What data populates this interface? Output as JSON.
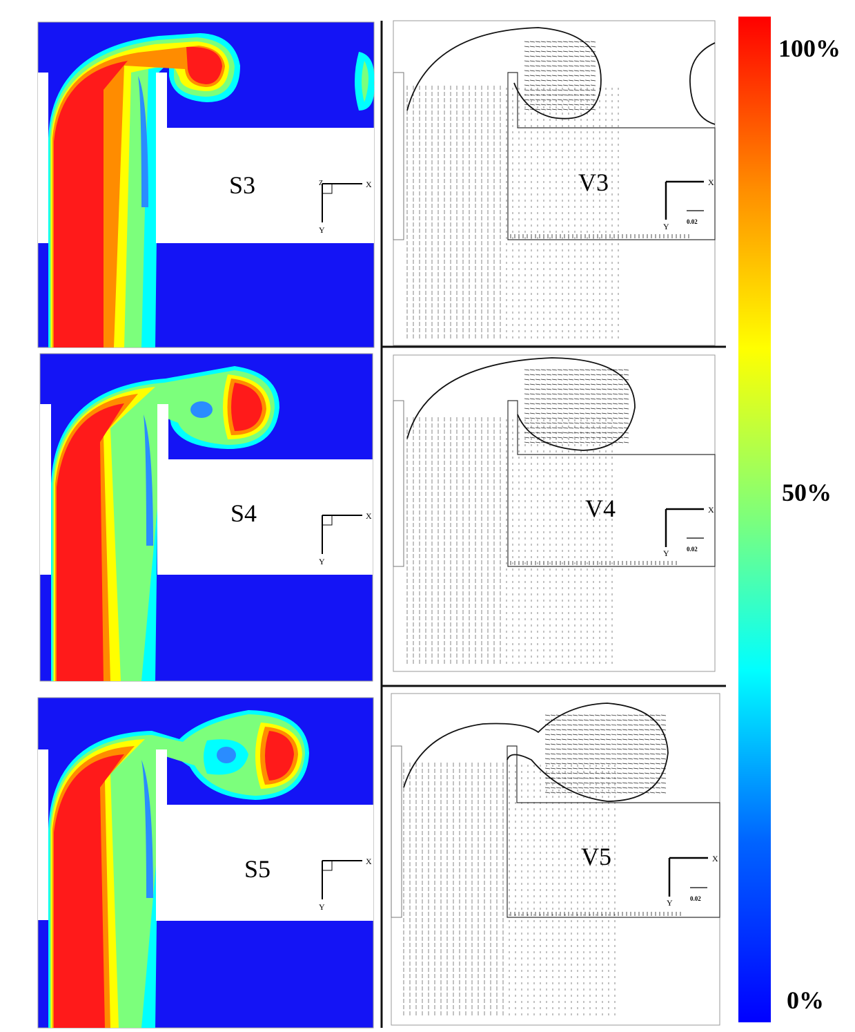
{
  "panels": [
    {
      "label": "S3",
      "type": "scalar"
    },
    {
      "label": "V3",
      "type": "vector",
      "scale": "0.02"
    },
    {
      "label": "S4",
      "type": "scalar"
    },
    {
      "label": "V4",
      "type": "vector",
      "scale": "0.02"
    },
    {
      "label": "S5",
      "type": "scalar"
    },
    {
      "label": "V5",
      "type": "vector",
      "scale": "0.02"
    }
  ],
  "axes": {
    "x": "X",
    "y": "Y",
    "z": "Z"
  },
  "colorbar": {
    "labels": {
      "top": "100%",
      "mid": "50%",
      "bottom": "0%"
    },
    "colors": [
      "#ff0000",
      "#ff8c00",
      "#ffff00",
      "#7cff7c",
      "#00ffff",
      "#0064ff",
      "#0000ff"
    ]
  },
  "colors": {
    "fluid_base": "#1414f5",
    "plume_red": "#ff1a1a",
    "wall": "#ffffff",
    "arrow": "#111111"
  }
}
